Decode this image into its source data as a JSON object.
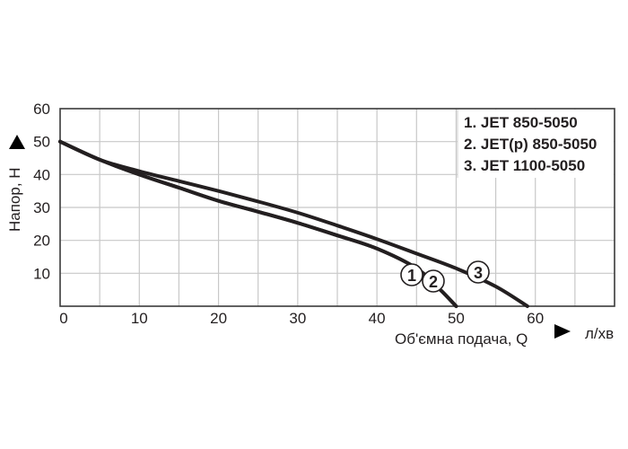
{
  "chart_data": {
    "type": "line",
    "title": "",
    "xlabel": "Об'ємна подача, Q",
    "xunit": "л/хв",
    "ylabel": "Напор, H",
    "xlim": [
      0,
      70
    ],
    "ylim": [
      0,
      60
    ],
    "x_ticks": [
      0,
      10,
      20,
      30,
      40,
      50,
      60
    ],
    "y_ticks": [
      10,
      20,
      30,
      40,
      50,
      60
    ],
    "grid": true,
    "grid_step_x": 5,
    "grid_step_y": 10,
    "legend_position": "top-right",
    "legend": [
      "1. JET 850-5050",
      "2. JET(p) 850-5050",
      "3. JET 1100-5050"
    ],
    "series": [
      {
        "name": "1. JET 850-5050",
        "marker": "1",
        "x": [
          0,
          5,
          10,
          15,
          20,
          25,
          30,
          35,
          40,
          45,
          48,
          50
        ],
        "y": [
          50,
          44.5,
          40,
          36,
          32,
          28.7,
          25.3,
          21.5,
          17.5,
          11.5,
          5,
          0
        ]
      },
      {
        "name": "2. JET(p) 850-5050",
        "marker": "2",
        "x": [
          0,
          5,
          10,
          15,
          20,
          25,
          30,
          35,
          40,
          45,
          48,
          50
        ],
        "y": [
          50,
          44.5,
          40,
          36,
          32,
          28.7,
          25.3,
          21.5,
          17.5,
          11.5,
          5,
          0
        ]
      },
      {
        "name": "3. JET 1100-5050",
        "marker": "3",
        "x": [
          0,
          5,
          10,
          15,
          20,
          25,
          30,
          35,
          40,
          45,
          50,
          55,
          59
        ],
        "y": [
          50,
          44.5,
          41,
          38,
          35,
          31.8,
          28.4,
          24.5,
          20.4,
          16,
          11.5,
          6,
          0
        ]
      }
    ]
  },
  "labels": {
    "xlabel": "Об'ємна подача, Q",
    "xunit": "л/хв",
    "ylabel": "Напор, H",
    "legend": [
      "1. JET 850-5050",
      "2. JET(p) 850-5050",
      "3. JET 1100-5050"
    ],
    "markers": [
      "1",
      "2",
      "3"
    ]
  }
}
